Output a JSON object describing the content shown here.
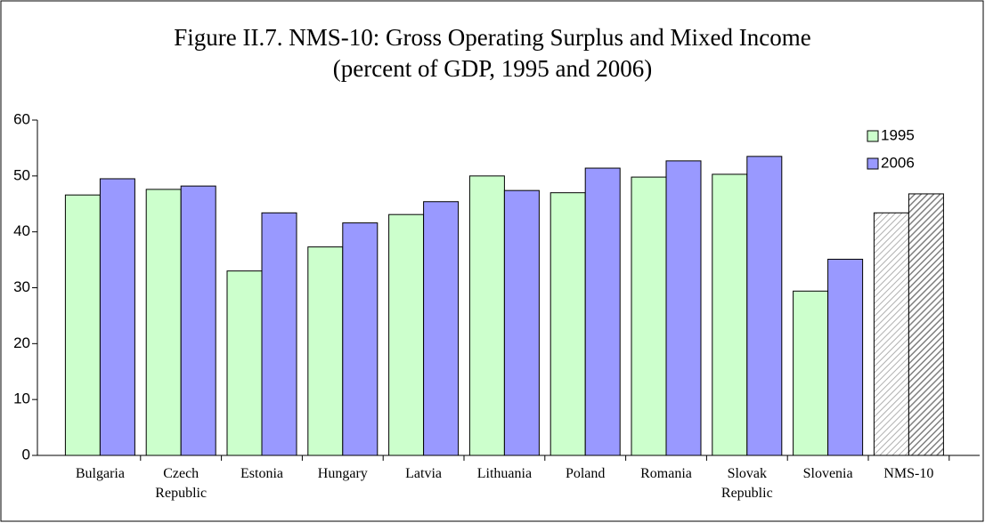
{
  "chart_data": {
    "type": "bar",
    "title": "Figure II.7. NMS-10: Gross Operating Surplus and Mixed Income",
    "subtitle": "(percent of GDP, 1995 and 2006)",
    "categories": [
      "Bulgaria",
      "Czech Republic",
      "Estonia",
      "Hungary",
      "Latvia",
      "Lithuania",
      "Poland",
      "Romania",
      "Slovak Republic",
      "Slovenia",
      "NMS-10"
    ],
    "series": [
      {
        "name": "1995",
        "color": "#ccffcc",
        "hatch_color": "#b0b0b0",
        "values": [
          46.6,
          47.6,
          33.0,
          37.3,
          43.1,
          50.0,
          47.0,
          49.8,
          50.3,
          29.4,
          43.4
        ]
      },
      {
        "name": "2006",
        "color": "#9999ff",
        "hatch_color": "#808080",
        "values": [
          49.5,
          48.2,
          43.4,
          41.6,
          45.4,
          47.4,
          51.4,
          52.7,
          53.5,
          35.1,
          46.8
        ]
      }
    ],
    "hatched": "NMS-10",
    "ylim": [
      0,
      60
    ],
    "yticks": [
      0,
      10,
      20,
      30,
      40,
      50,
      60
    ],
    "grid": false,
    "legend": "top-right"
  }
}
